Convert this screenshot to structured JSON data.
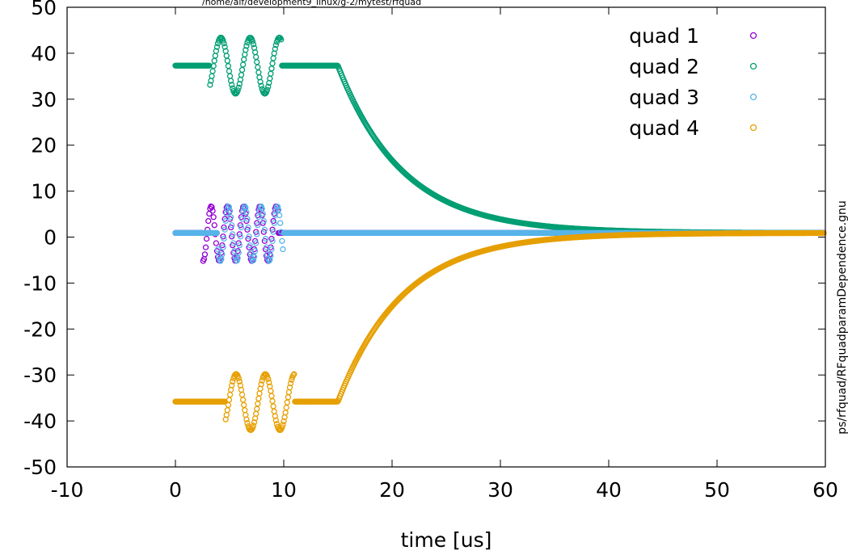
{
  "header_path": "/home/aif/development9_linux/g-2/mytest/rfquad",
  "side_label": "ps/rfquad/RFquadparamDependence.gnu",
  "chart_data": {
    "type": "scatter",
    "xlabel": "time [us]",
    "ylabel": "",
    "xlim": [
      -10,
      60
    ],
    "ylim": [
      -50,
      50
    ],
    "xticks": [
      -10,
      0,
      10,
      20,
      30,
      40,
      50,
      60
    ],
    "yticks": [
      -50,
      -40,
      -30,
      -20,
      -10,
      0,
      10,
      20,
      30,
      40,
      50
    ],
    "grid": false,
    "legend_position": "top-right",
    "marker": "open-circle",
    "series": [
      {
        "name": "quad 1",
        "color": "#9400d3",
        "baseline": 0.9,
        "oscillation": {
          "start": 2.5,
          "end": 9.5,
          "period": 1.5,
          "phase_ref": 3.3,
          "peak": 6.7,
          "trough": -5.2
        }
      },
      {
        "name": "quad 2",
        "color": "#009e73",
        "baseline": 37.3,
        "oscillation": {
          "start": 3.2,
          "end": 9.8,
          "period": 2.7,
          "phase_ref": 4.2,
          "peak": 43.4,
          "trough": 31.2
        },
        "decay": {
          "start": 15,
          "tau": 6,
          "final": 0.9
        }
      },
      {
        "name": "quad 3",
        "color": "#56b4e9",
        "baseline": 0.9,
        "oscillation": {
          "start": 3.9,
          "end": 10.0,
          "period": 1.5,
          "phase_ref": 4.9,
          "peak": 6.7,
          "trough": -5.2
        }
      },
      {
        "name": "quad 4",
        "color": "#e69f00",
        "baseline": -35.8,
        "oscillation": {
          "start": 4.6,
          "end": 11.0,
          "period": 2.7,
          "phase_ref": 5.6,
          "peak": -29.8,
          "trough": -42.0
        },
        "decay": {
          "start": 15,
          "tau": 6,
          "final": 0.9
        }
      }
    ]
  }
}
